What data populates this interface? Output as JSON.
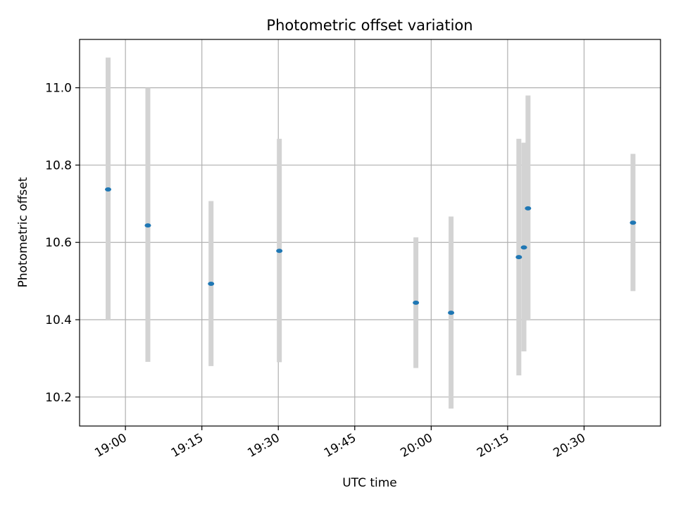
{
  "chart_data": {
    "type": "scatter",
    "title": "Photometric offset variation",
    "xlabel": "UTC time",
    "ylabel": "Photometric offset",
    "xlim": [
      "18:51",
      "20:45"
    ],
    "ylim": [
      10.125,
      11.125
    ],
    "x_ticks": [
      "19:00",
      "19:15",
      "19:30",
      "19:45",
      "20:00",
      "20:15",
      "20:30"
    ],
    "y_ticks": [
      10.2,
      10.4,
      10.6,
      10.8,
      11.0
    ],
    "y_tick_labels": [
      "10.2",
      "10.4",
      "10.6",
      "10.8",
      "11.0"
    ],
    "grid": true,
    "colors": {
      "point": "#1f77b4",
      "errorbar": "#d3d3d3",
      "grid": "#b0b0b0"
    },
    "points": [
      {
        "x": "18:56:36",
        "y": 10.737,
        "y_low": 10.398,
        "y_high": 11.078
      },
      {
        "x": "19:04:24",
        "y": 10.644,
        "y_low": 10.291,
        "y_high": 11.0
      },
      {
        "x": "19:16:48",
        "y": 10.493,
        "y_low": 10.28,
        "y_high": 10.707
      },
      {
        "x": "19:30:12",
        "y": 10.578,
        "y_low": 10.29,
        "y_high": 10.868
      },
      {
        "x": "19:57:00",
        "y": 10.444,
        "y_low": 10.275,
        "y_high": 10.613
      },
      {
        "x": "20:03:54",
        "y": 10.418,
        "y_low": 10.17,
        "y_high": 10.667
      },
      {
        "x": "20:17:12",
        "y": 10.562,
        "y_low": 10.256,
        "y_high": 10.868
      },
      {
        "x": "20:18:12",
        "y": 10.587,
        "y_low": 10.318,
        "y_high": 10.858
      },
      {
        "x": "20:19:00",
        "y": 10.688,
        "y_low": 10.398,
        "y_high": 10.98
      },
      {
        "x": "20:39:36",
        "y": 10.651,
        "y_low": 10.474,
        "y_high": 10.829
      }
    ]
  }
}
